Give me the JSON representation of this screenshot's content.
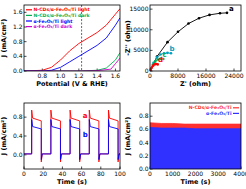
{
  "chart_data": [
    {
      "type": "line",
      "x_label": "Potential (V & RHE)",
      "y_label": "J (mA/cm²)",
      "xlim": [
        0.6,
        1.65
      ],
      "xticks": [
        0.8,
        {
          "value": 1.0,
          "label": "1.0"
        },
        1.2,
        1.4,
        1.6
      ],
      "ylim": [
        0,
        1.8
      ],
      "yticks": [
        {
          "value": 0,
          "label": "0.0"
        },
        0.4,
        0.8,
        1.2,
        1.6
      ],
      "reference_line": 1.23,
      "legend": "top-left",
      "series": [
        {
          "name": "N-CDs/α-Fe₂O₃/Ti light",
          "color": "#ff0000",
          "x": [
            0.6,
            0.8,
            0.9,
            1.0,
            1.1,
            1.2,
            1.3,
            1.4,
            1.5,
            1.6,
            1.65
          ],
          "values": [
            0,
            0.02,
            0.1,
            0.3,
            0.55,
            0.75,
            0.9,
            1.05,
            1.25,
            1.55,
            1.7
          ]
        },
        {
          "name": "N-CDs/α-Fe₂O₃/Ti dark",
          "color": "#00b050",
          "x": [
            0.6,
            0.8,
            1.0,
            1.2,
            1.4,
            1.5,
            1.6,
            1.65
          ],
          "values": [
            0,
            0,
            0,
            0,
            0.02,
            0.08,
            0.3,
            0.5
          ]
        },
        {
          "name": "α-Fe₂O₃/Ti light",
          "color": "#0000ff",
          "x": [
            0.6,
            0.8,
            0.9,
            1.0,
            1.1,
            1.2,
            1.3,
            1.4,
            1.5,
            1.6,
            1.65
          ],
          "values": [
            0,
            0,
            0.02,
            0.1,
            0.25,
            0.4,
            0.55,
            0.7,
            0.9,
            1.25,
            1.45
          ]
        },
        {
          "name": "α-Fe₂O₃/Ti dark",
          "color": "#cc00cc",
          "x": [
            0.6,
            0.8,
            1.0,
            1.2,
            1.4,
            1.55,
            1.6,
            1.65
          ],
          "values": [
            0,
            0,
            0,
            0,
            0.01,
            0.05,
            0.2,
            0.35
          ]
        }
      ]
    },
    {
      "type": "line",
      "x_label": "Z' (ohm)",
      "y_label": "-Z'' (ohm)",
      "marker": "circle",
      "xlim": [
        0,
        26000
      ],
      "xticks": [
        0,
        8000,
        16000,
        24000
      ],
      "ylim": [
        0,
        16000
      ],
      "yticks": [
        0,
        5000,
        10000,
        15000
      ],
      "series": [
        {
          "name": "a",
          "color": "#000000",
          "x": [
            200,
            2000,
            5000,
            8000,
            11000,
            14000,
            17000,
            20000,
            22000
          ],
          "values": [
            500,
            3500,
            7000,
            9500,
            11500,
            12800,
            13600,
            14000,
            14100
          ]
        },
        {
          "name": "b",
          "color": "#00a0c0",
          "x": [
            200,
            1000,
            2000,
            3000,
            4000,
            5000,
            6000
          ],
          "values": [
            300,
            2000,
            3300,
            4000,
            4300,
            4400,
            4300
          ]
        },
        {
          "name": "c",
          "color": "#00b050",
          "x": [
            200,
            800,
            1500,
            2200,
            3000,
            3800
          ],
          "values": [
            300,
            1500,
            2300,
            2800,
            3000,
            2900
          ]
        },
        {
          "name": "d",
          "color": "#ff0000",
          "x": [
            200,
            500,
            900,
            1300,
            1700,
            2200
          ],
          "values": [
            200,
            800,
            1300,
            1600,
            1700,
            1600
          ]
        }
      ]
    },
    {
      "type": "line",
      "x_label": "Time (s)",
      "y_label": "J (mA/cm²)",
      "xlim": [
        0,
        100
      ],
      "xticks": [
        0,
        20,
        40,
        60,
        80,
        100
      ],
      "ylim": [
        -0.3,
        1.1
      ],
      "yticks": [
        {
          "value": 0,
          "label": "0.0"
        },
        0.4,
        0.8
      ],
      "series": [
        {
          "name": "a",
          "color": "#ff0000",
          "x": [
            0,
            8,
            8,
            9,
            18,
            18,
            19,
            28,
            28,
            29,
            38,
            38,
            39,
            48,
            48,
            49,
            58,
            58,
            59,
            68,
            68,
            69,
            78,
            78,
            79,
            88,
            88,
            89,
            98,
            98,
            99,
            100
          ],
          "values": [
            0.02,
            0.02,
            0.95,
            0.78,
            0.72,
            -0.15,
            0.02,
            0.02,
            0.95,
            0.78,
            0.72,
            -0.15,
            0.02,
            0.02,
            0.95,
            0.78,
            0.72,
            -0.15,
            0.02,
            0.02,
            0.95,
            0.78,
            0.72,
            -0.15,
            0.02,
            0.02,
            0.95,
            0.78,
            0.72,
            -0.15,
            0.02,
            0.02
          ]
        },
        {
          "name": "b",
          "color": "#0000ff",
          "x": [
            0,
            8,
            8,
            9,
            18,
            18,
            19,
            28,
            28,
            29,
            38,
            38,
            39,
            48,
            48,
            49,
            58,
            58,
            59,
            68,
            68,
            69,
            78,
            78,
            79,
            88,
            88,
            89,
            98,
            98,
            99,
            100
          ],
          "values": [
            0.02,
            0.02,
            0.75,
            0.6,
            0.55,
            -0.1,
            0.02,
            0.02,
            0.75,
            0.6,
            0.55,
            -0.1,
            0.02,
            0.02,
            0.75,
            0.6,
            0.55,
            -0.1,
            0.02,
            0.02,
            0.75,
            0.6,
            0.55,
            -0.1,
            0.02,
            0.02,
            0.75,
            0.6,
            0.55,
            -0.1,
            0.02,
            0.02
          ]
        }
      ]
    },
    {
      "type": "area",
      "x_label": "Time (s)",
      "y_label": "J (mA/cm²)",
      "legend": "top-right",
      "xlim": [
        0,
        4000
      ],
      "xticks": [
        0,
        1000,
        2000,
        3000,
        4000
      ],
      "ylim": [
        0,
        1.0
      ],
      "yticks": [
        {
          "value": 0,
          "label": "0.0"
        },
        0.2,
        0.4,
        0.6,
        0.8
      ],
      "series": [
        {
          "name": "N-CDs/α-Fe₂O₃/Ti",
          "color": "#ff3030",
          "x": [
            0,
            500,
            1000,
            1500,
            2000,
            2500,
            3000,
            3500,
            4000
          ],
          "values": [
            0.7,
            0.69,
            0.69,
            0.68,
            0.68,
            0.68,
            0.68,
            0.68,
            0.68
          ]
        },
        {
          "name": "α-Fe₂O₃/Ti",
          "color": "#3030ff",
          "x": [
            0,
            500,
            1000,
            1500,
            2000,
            2500,
            3000,
            3500,
            4000
          ],
          "values": [
            0.63,
            0.62,
            0.62,
            0.62,
            0.61,
            0.61,
            0.61,
            0.61,
            0.61
          ]
        }
      ]
    }
  ]
}
